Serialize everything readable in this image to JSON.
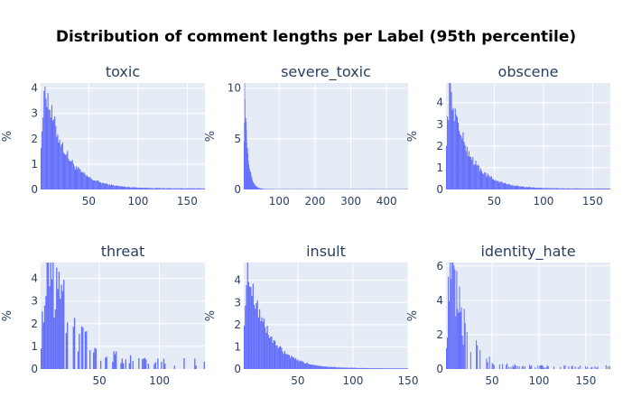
{
  "chart_data": {
    "title": "Distribution of comment lengths per Label (95th percentile)",
    "colors": {
      "bars": "#636efa",
      "plot_background": "#e5ecf6",
      "grid": "#ffffff"
    },
    "subplots": [
      {
        "type": "bar",
        "title": "toxic",
        "ylabel": "%",
        "xlim": [
          1,
          168
        ],
        "ylim": [
          0,
          4.2
        ],
        "xticks": [
          50,
          100,
          150
        ],
        "yticks": [
          0,
          1,
          2,
          3,
          4
        ],
        "shape": "decay",
        "peak_x": 5,
        "peak_y": 4.1,
        "decay": 20,
        "tail": 0.04
      },
      {
        "type": "bar",
        "title": "severe_toxic",
        "ylabel": "%",
        "xlim": [
          1,
          460
        ],
        "ylim": [
          0,
          10.5
        ],
        "xticks": [
          100,
          200,
          300,
          400
        ],
        "yticks": [
          0,
          5,
          10
        ],
        "shape": "decay",
        "peak_x": 3,
        "peak_y": 10.0,
        "decay": 9,
        "tail": 0.03
      },
      {
        "type": "bar",
        "title": "obscene",
        "ylabel": "%",
        "xlim": [
          1,
          168
        ],
        "ylim": [
          0,
          4.9
        ],
        "xticks": [
          50,
          100,
          150
        ],
        "yticks": [
          0,
          1,
          2,
          3,
          4
        ],
        "shape": "decay",
        "peak_x": 4,
        "peak_y": 4.7,
        "decay": 19,
        "tail": 0.04
      },
      {
        "type": "bar",
        "title": "threat",
        "ylabel": "%",
        "xlim": [
          1,
          138
        ],
        "ylim": [
          0,
          4.7
        ],
        "xticks": [
          50,
          100
        ],
        "yticks": [
          0,
          1,
          2,
          3,
          4
        ],
        "shape": "sparse",
        "peak_x": 8,
        "peak_y": 4.6,
        "decay": 18,
        "tail": 0.3
      },
      {
        "type": "bar",
        "title": "insult",
        "ylabel": "%",
        "xlim": [
          1,
          150
        ],
        "ylim": [
          0,
          4.8
        ],
        "xticks": [
          50,
          100,
          150
        ],
        "yticks": [
          0,
          1,
          2,
          3,
          4
        ],
        "shape": "decay",
        "peak_x": 4,
        "peak_y": 4.6,
        "decay": 18,
        "tail": 0.03
      },
      {
        "type": "bar",
        "title": "identity_hate",
        "ylabel": "%",
        "xlim": [
          1,
          176
        ],
        "ylim": [
          0,
          6.2
        ],
        "xticks": [
          50,
          100,
          150
        ],
        "yticks": [
          0,
          2,
          4,
          6
        ],
        "shape": "sparse",
        "peak_x": 6,
        "peak_y": 5.8,
        "decay": 15,
        "tail": 0.15
      }
    ]
  }
}
